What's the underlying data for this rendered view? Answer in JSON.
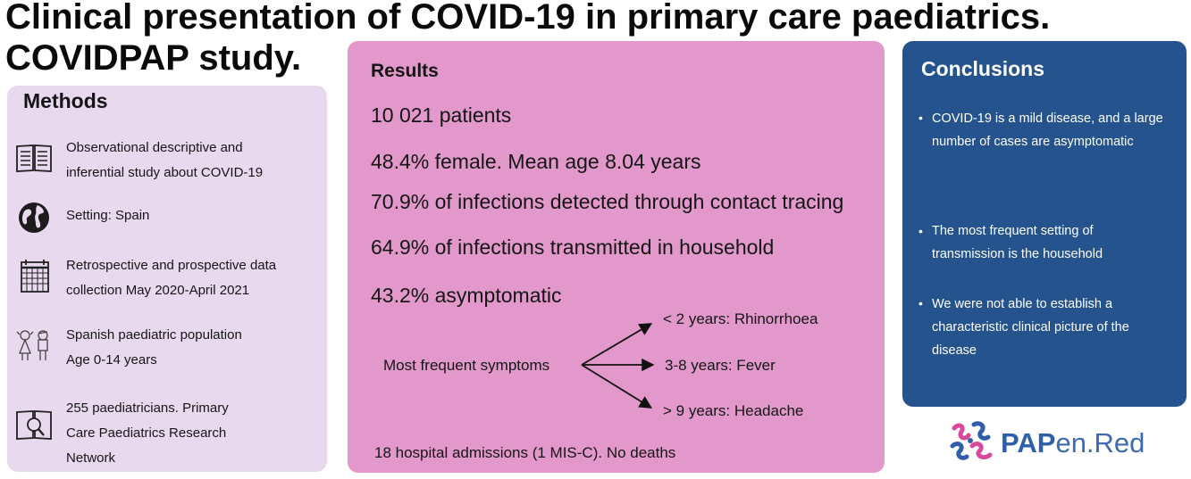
{
  "title": {
    "line1": "Clinical presentation of COVID-19 in primary care paediatrics.",
    "line2": "COVIDPAP study."
  },
  "methods": {
    "heading": "Methods",
    "items": [
      {
        "icon": "book-icon",
        "lines": [
          "Observational descriptive and",
          "inferential study about COVID-19"
        ]
      },
      {
        "icon": "globe-icon",
        "lines": [
          "Setting: Spain"
        ]
      },
      {
        "icon": "calendar-icon",
        "lines": [
          "Retrospective and prospective data",
          "collection May 2020-April 2021"
        ]
      },
      {
        "icon": "children-icon",
        "lines": [
          "Spanish paediatric population",
          "Age 0-14 years"
        ]
      },
      {
        "icon": "book-magnifier-icon",
        "lines": [
          "255 paediatricians. Primary",
          "Care Paediatrics Research",
          "Network"
        ]
      }
    ]
  },
  "results": {
    "heading": "Results",
    "lines": [
      "10 021 patients",
      "48.4% female. Mean age 8.04 years",
      "70.9% of infections detected through contact tracing",
      "64.9% of infections transmitted in household",
      "43.2% asymptomatic"
    ],
    "symptoms": {
      "label": "Most frequent symptoms",
      "branches": [
        "< 2 years: Rhinorrhoea",
        "3-8 years: Fever",
        "> 9 years: Headache"
      ]
    },
    "footer": "18 hospital admissions (1 MIS-C). No deaths"
  },
  "conclusions": {
    "heading": "Conclusions",
    "items": [
      "COVID-19 is a mild disease, and a large number of cases are asymptomatic",
      "The most frequent setting of transmission is the household",
      "We were not able to establish a characteristic clinical picture of the disease"
    ]
  },
  "logo": {
    "part1": "PAP",
    "part2": "en.Red"
  },
  "colors": {
    "methods_bg": "#e9d9ef",
    "results_bg": "#e298cb",
    "conclusions_bg": "#24538e",
    "logo_blue": "#2f5fa9",
    "logo_pink": "#d9489a"
  }
}
